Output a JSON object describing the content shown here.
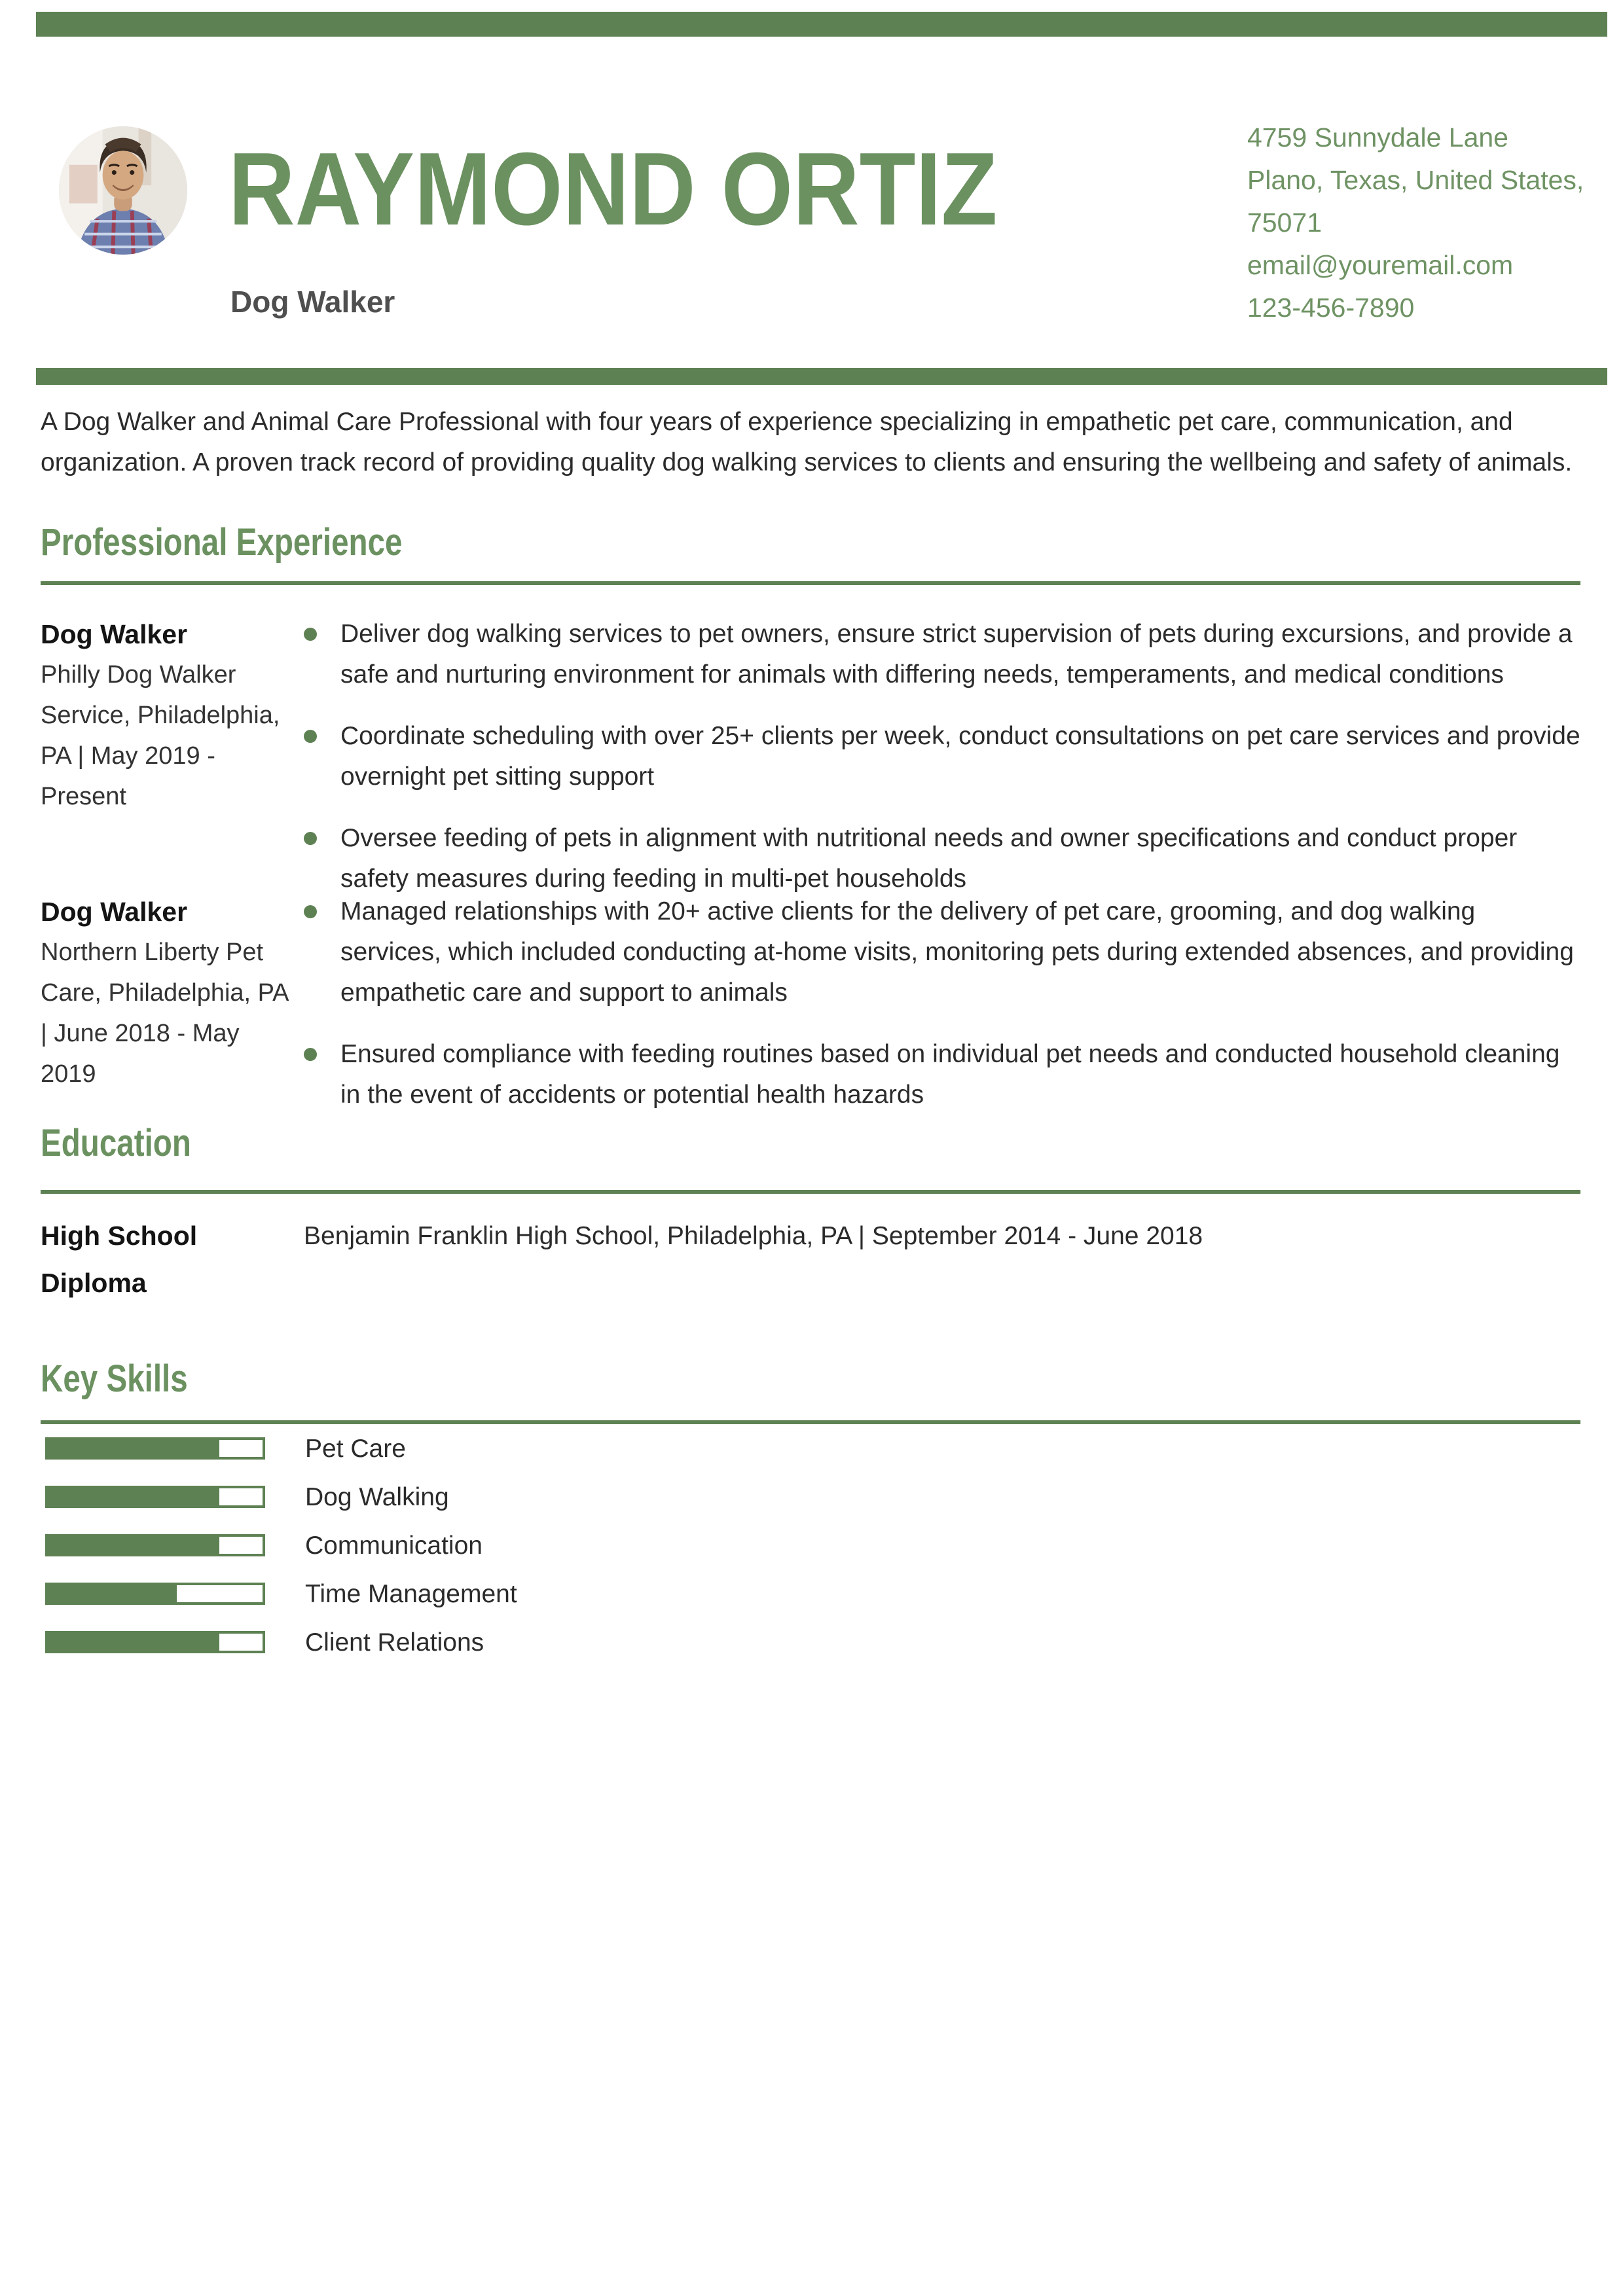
{
  "colors": {
    "accent": "#5e8153",
    "heading_green": "#6b9160",
    "contact_green": "#6f9364",
    "subtitle_gray": "#4f4f4f",
    "body_text": "#2b2b2b"
  },
  "header": {
    "name": "RAYMOND ORTIZ",
    "job_title": "Dog Walker",
    "contact_lines": [
      "4759 Sunnydale Lane",
      "Plano, Texas, United States,",
      "75071",
      "email@youremail.com",
      "123-456-7890"
    ]
  },
  "summary": "A Dog Walker and Animal Care Professional with four years of experience specializing in empathetic pet care, communication, and organization. A proven track record of providing quality dog walking services to clients and ensuring the wellbeing and safety of animals.",
  "sections": {
    "experience": {
      "heading": "Professional Experience",
      "jobs": [
        {
          "title": "Dog Walker",
          "org": "Philly Dog Walker Service, Philadelphia, PA | May 2019 - Present",
          "bullets": [
            "Deliver dog walking services to pet owners, ensure strict supervision of pets during excursions, and provide a safe and nurturing environment for animals with differing needs, temperaments, and medical conditions",
            "Coordinate scheduling with over 25+ clients per week, conduct consultations on pet care services and provide overnight pet sitting support",
            "Oversee feeding of pets in alignment with nutritional needs and owner specifications and conduct proper safety measures during feeding in multi-pet households"
          ]
        },
        {
          "title": "Dog Walker",
          "org": "Northern Liberty Pet Care, Philadelphia, PA | June 2018 - May 2019",
          "bullets": [
            "Managed relationships with 20+ active clients for the delivery of pet care, grooming, and dog walking services, which included conducting at-home visits, monitoring pets during extended absences, and providing empathetic care and support to animals",
            "Ensured compliance with feeding routines based on individual pet needs and conducted household cleaning in the event of accidents or potential health hazards"
          ]
        }
      ]
    },
    "education": {
      "heading": "Education",
      "degree": "High School Diploma",
      "detail": "Benjamin Franklin High School, Philadelphia, PA | September 2014 - June 2018"
    },
    "skills": {
      "heading": "Key Skills",
      "items": [
        {
          "label": "Pet Care",
          "percent": 80
        },
        {
          "label": "Dog Walking",
          "percent": 80
        },
        {
          "label": "Communication",
          "percent": 80
        },
        {
          "label": "Time Management",
          "percent": 60
        },
        {
          "label": "Client Relations",
          "percent": 80
        }
      ]
    }
  }
}
